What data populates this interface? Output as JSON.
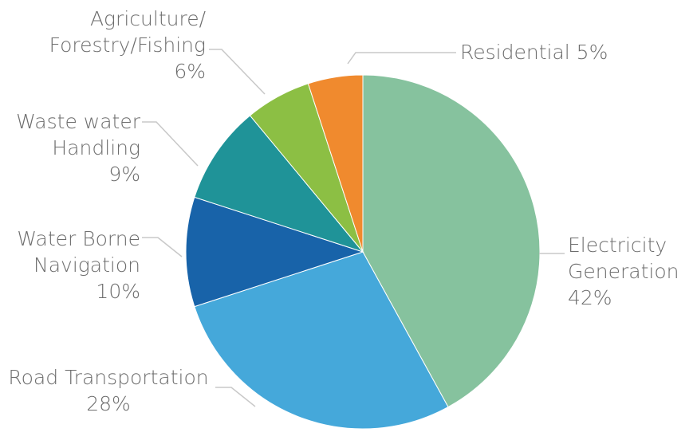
{
  "chart_data": {
    "type": "pie",
    "slices": [
      {
        "label_lines": [
          "Electricity",
          "Generation"
        ],
        "pct_label": "42%",
        "value": 42,
        "color": "#86c29e"
      },
      {
        "label_lines": [
          "Road Transportation"
        ],
        "pct_label": "28%",
        "value": 28,
        "color": "#45a8da"
      },
      {
        "label_lines": [
          "Water Borne",
          "Navigation"
        ],
        "pct_label": "10%",
        "value": 10,
        "color": "#1863a9"
      },
      {
        "label_lines": [
          "Waste water",
          "Handling"
        ],
        "pct_label": "9%",
        "value": 9,
        "color": "#1f9398"
      },
      {
        "label_lines": [
          "Agriculture/",
          "Forestry/Fishing"
        ],
        "pct_label": "6%",
        "value": 6,
        "color": "#8cbf44"
      },
      {
        "label_lines": [
          "Residential"
        ],
        "pct_label": "5%",
        "value": 5,
        "color": "#f08a2e"
      }
    ],
    "start": "12 o'clock",
    "direction": "clockwise",
    "leader_line_color": "#c8c8c8"
  }
}
